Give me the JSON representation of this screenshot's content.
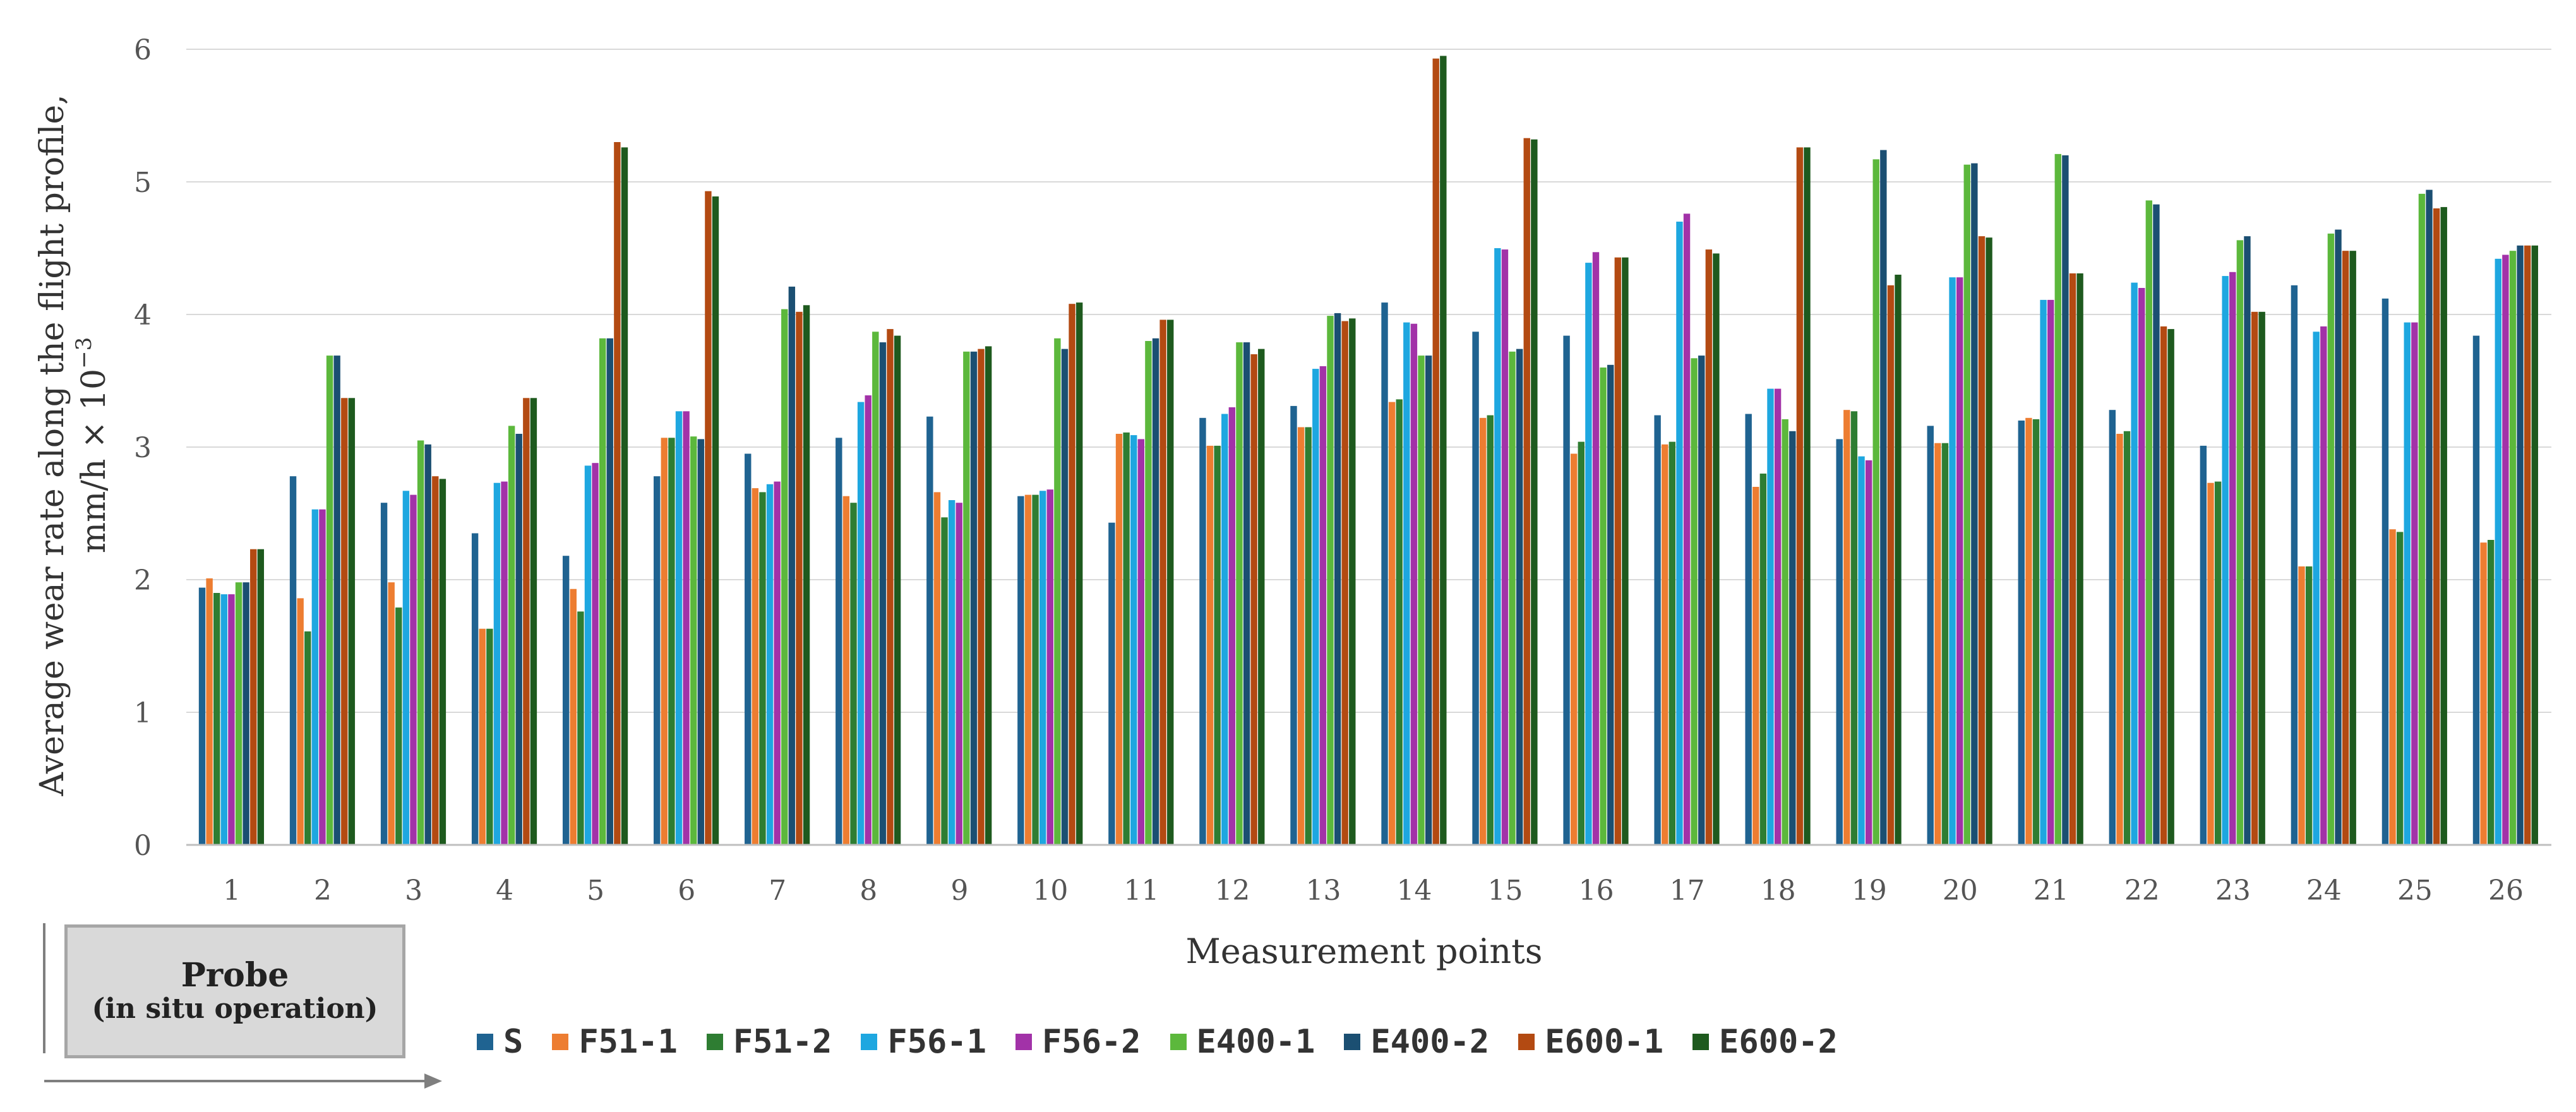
{
  "chart_data": {
    "type": "bar",
    "title": "",
    "xlabel": "Measurement points",
    "ylabel_line1": "Average wear rate along the flight profile,",
    "ylabel_line2": "mm/h × 10",
    "ylabel_exp": "−3",
    "ylim": [
      0,
      6
    ],
    "yticks": [
      "0",
      "1",
      "2",
      "3",
      "4",
      "5",
      "6"
    ],
    "grid": true,
    "legend_position": "bottom",
    "categories": [
      "1",
      "2",
      "3",
      "4",
      "5",
      "6",
      "7",
      "8",
      "9",
      "10",
      "11",
      "12",
      "13",
      "14",
      "15",
      "16",
      "17",
      "18",
      "19",
      "20",
      "21",
      "22",
      "23",
      "24",
      "25",
      "26"
    ],
    "series": [
      {
        "name": "S",
        "color": "#1f6391",
        "values": [
          1.94,
          2.78,
          2.58,
          2.35,
          2.18,
          2.78,
          2.95,
          3.07,
          3.23,
          2.63,
          2.43,
          3.22,
          3.31,
          4.09,
          3.87,
          3.84,
          3.24,
          3.25,
          3.06,
          3.16,
          3.2,
          3.28,
          3.01,
          4.22,
          4.12,
          3.84
        ]
      },
      {
        "name": "F51-1",
        "color": "#ed7d31",
        "values": [
          2.01,
          1.86,
          1.98,
          1.63,
          1.93,
          3.07,
          2.69,
          2.63,
          2.66,
          2.64,
          3.1,
          3.01,
          3.15,
          3.34,
          3.22,
          2.95,
          3.02,
          2.7,
          3.28,
          3.03,
          3.22,
          3.1,
          2.73,
          2.1,
          2.38,
          2.28
        ]
      },
      {
        "name": "F51-2",
        "color": "#2e7d32",
        "values": [
          1.9,
          1.61,
          1.79,
          1.63,
          1.76,
          3.07,
          2.66,
          2.58,
          2.47,
          2.64,
          3.11,
          3.01,
          3.15,
          3.36,
          3.24,
          3.04,
          3.04,
          2.8,
          3.27,
          3.03,
          3.21,
          3.12,
          2.74,
          2.1,
          2.36,
          2.3
        ]
      },
      {
        "name": "F56-1",
        "color": "#1ea7e0",
        "values": [
          1.89,
          2.53,
          2.67,
          2.73,
          2.86,
          3.27,
          2.72,
          3.34,
          2.6,
          2.67,
          3.09,
          3.25,
          3.59,
          3.94,
          4.5,
          4.39,
          4.7,
          3.44,
          2.93,
          4.28,
          4.11,
          4.24,
          4.29,
          3.87,
          3.94,
          4.42
        ]
      },
      {
        "name": "F56-2",
        "color": "#a232a8",
        "values": [
          1.89,
          2.53,
          2.64,
          2.74,
          2.88,
          3.27,
          2.74,
          3.39,
          2.58,
          2.68,
          3.06,
          3.3,
          3.61,
          3.93,
          4.49,
          4.47,
          4.76,
          3.44,
          2.9,
          4.28,
          4.11,
          4.2,
          4.32,
          3.91,
          3.94,
          4.45
        ]
      },
      {
        "name": "E400-1",
        "color": "#5cb83c",
        "values": [
          1.98,
          3.69,
          3.05,
          3.16,
          3.82,
          3.08,
          4.04,
          3.87,
          3.72,
          3.82,
          3.8,
          3.79,
          3.99,
          3.69,
          3.72,
          3.6,
          3.67,
          3.21,
          5.17,
          5.13,
          5.21,
          4.86,
          4.56,
          4.61,
          4.91,
          4.48
        ]
      },
      {
        "name": "E400-2",
        "color": "#1b4f72",
        "values": [
          1.98,
          3.69,
          3.02,
          3.1,
          3.82,
          3.06,
          4.21,
          3.79,
          3.72,
          3.74,
          3.82,
          3.79,
          4.01,
          3.69,
          3.74,
          3.62,
          3.69,
          3.12,
          5.24,
          5.14,
          5.2,
          4.83,
          4.59,
          4.64,
          4.94,
          4.52
        ]
      },
      {
        "name": "E600-1",
        "color": "#b34a12",
        "values": [
          2.23,
          3.37,
          2.78,
          3.37,
          5.3,
          4.93,
          4.02,
          3.89,
          3.74,
          4.08,
          3.96,
          3.7,
          3.95,
          5.93,
          5.33,
          4.43,
          4.49,
          5.26,
          4.22,
          4.59,
          4.31,
          3.91,
          4.02,
          4.48,
          4.8,
          4.52
        ]
      },
      {
        "name": "E600-2",
        "color": "#1e5a1e",
        "values": [
          2.23,
          3.37,
          2.76,
          3.37,
          5.26,
          4.89,
          4.07,
          3.84,
          3.76,
          4.09,
          3.96,
          3.74,
          3.97,
          5.95,
          5.32,
          4.43,
          4.46,
          5.26,
          4.3,
          4.58,
          4.31,
          3.89,
          4.02,
          4.48,
          4.81,
          4.52
        ]
      }
    ]
  },
  "probe": {
    "title": "Probe",
    "subtitle": "(in situ operation)"
  }
}
